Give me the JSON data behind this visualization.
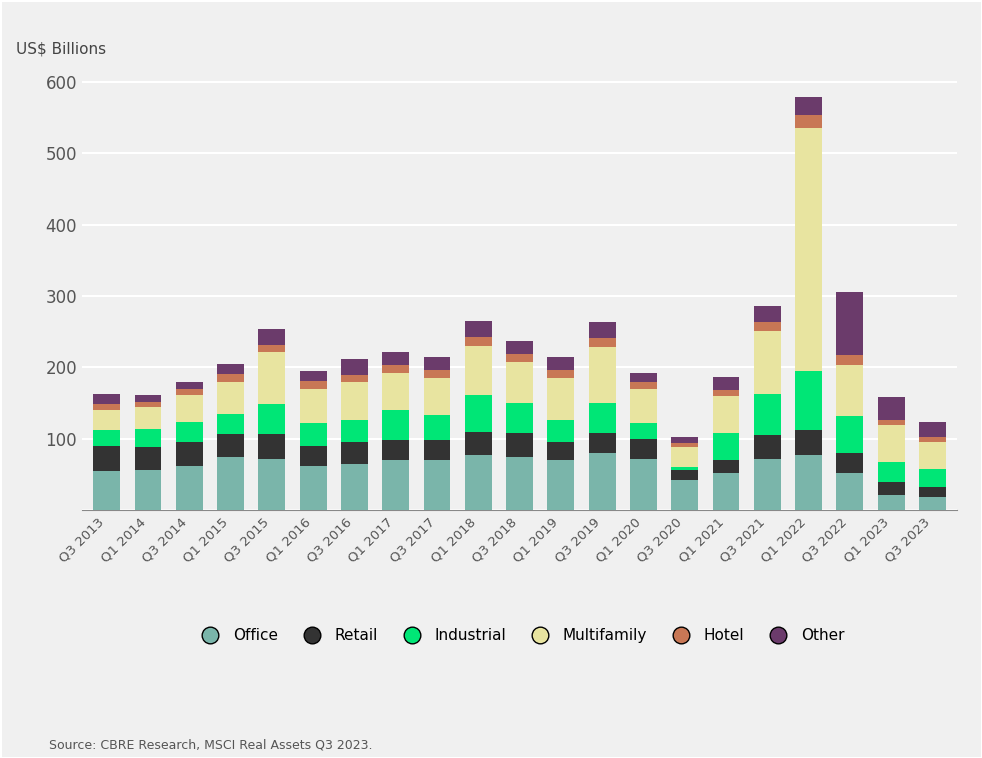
{
  "quarters": [
    "Q3 2013",
    "Q1 2014",
    "Q3 2014",
    "Q1 2015",
    "Q3 2015",
    "Q1 2016",
    "Q3 2016",
    "Q1 2017",
    "Q3 2017",
    "Q1 2018",
    "Q3 2018",
    "Q1 2019",
    "Q3 2019",
    "Q1 2020",
    "Q3 2020",
    "Q1 2021",
    "Q3 2021",
    "Q1 2022",
    "Q3 2022",
    "Q1 2023",
    "Q3 2023"
  ],
  "office": [
    55,
    57,
    62,
    75,
    72,
    62,
    65,
    70,
    70,
    78,
    75,
    70,
    80,
    72,
    42,
    52,
    72,
    78,
    52,
    22,
    18
  ],
  "retail": [
    35,
    32,
    33,
    32,
    35,
    28,
    30,
    28,
    28,
    32,
    33,
    25,
    28,
    28,
    14,
    18,
    33,
    35,
    28,
    18,
    15
  ],
  "industrial": [
    22,
    25,
    28,
    28,
    42,
    32,
    32,
    42,
    35,
    52,
    42,
    32,
    42,
    22,
    5,
    38,
    58,
    82,
    52,
    28,
    25
  ],
  "multifamily": [
    28,
    30,
    38,
    45,
    72,
    48,
    52,
    52,
    52,
    68,
    58,
    58,
    78,
    48,
    28,
    52,
    88,
    340,
    72,
    52,
    38
  ],
  "hotel": [
    9,
    7,
    9,
    11,
    11,
    11,
    11,
    11,
    11,
    13,
    11,
    11,
    13,
    9,
    5,
    9,
    13,
    18,
    13,
    7,
    6
  ],
  "other": [
    14,
    11,
    9,
    14,
    22,
    14,
    22,
    18,
    18,
    22,
    18,
    18,
    22,
    13,
    9,
    18,
    22,
    25,
    88,
    32,
    22
  ],
  "colors": {
    "office": "#7ab5aa",
    "retail": "#333333",
    "industrial": "#00e676",
    "multifamily": "#e8e4a0",
    "hotel": "#c87755",
    "other": "#6b3b6b"
  },
  "ylabel": "US$ Billions",
  "ylim": [
    0,
    620
  ],
  "yticks": [
    0,
    100,
    200,
    300,
    400,
    500,
    600
  ],
  "source": "Source: CBRE Research, MSCI Real Assets Q3 2023.",
  "background_color": "#f0f0f0",
  "chart_bg": "#f0f0f0",
  "border_color": "#cccccc"
}
